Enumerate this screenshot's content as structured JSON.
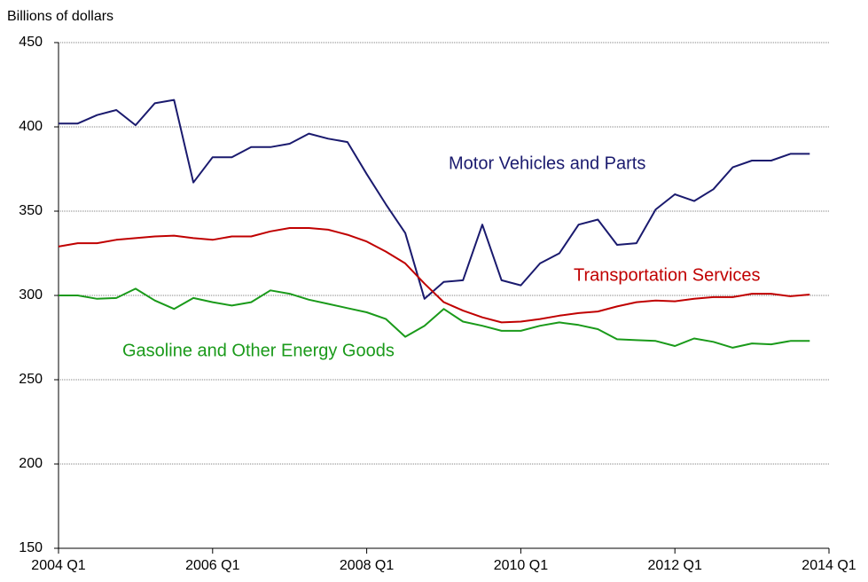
{
  "chart_data": {
    "type": "line",
    "ylabel": "Billions of dollars",
    "categories": [
      "2004 Q1",
      null,
      null,
      null,
      null,
      null,
      null,
      null,
      "2006 Q1",
      null,
      null,
      null,
      null,
      null,
      null,
      null,
      "2008 Q1",
      null,
      null,
      null,
      null,
      null,
      null,
      null,
      "2010 Q1",
      null,
      null,
      null,
      null,
      null,
      null,
      null,
      "2012 Q1",
      null,
      null,
      null,
      null,
      null,
      null,
      null,
      "2014 Q1"
    ],
    "series": [
      {
        "name": "Motor Vehicles and Parts",
        "color": "#1a1a6e",
        "values": [
          402,
          402,
          407,
          410,
          401,
          414,
          416,
          367,
          382,
          382,
          388,
          388,
          390,
          396,
          393,
          391,
          372,
          354,
          337,
          298,
          308,
          309,
          342,
          309,
          306,
          319,
          325,
          342,
          345,
          330,
          331,
          351,
          360,
          356,
          363,
          376,
          380,
          380,
          384,
          384,
          null
        ]
      },
      {
        "name": "Transportation Services",
        "color": "#c00000",
        "values": [
          329,
          331,
          331,
          333,
          334,
          335,
          335.5,
          334,
          333,
          335,
          335,
          338,
          340,
          340,
          339,
          336,
          332,
          326,
          319,
          307,
          296,
          291,
          287,
          284,
          284.5,
          286,
          288,
          289.5,
          290.5,
          293.5,
          296,
          297,
          296.5,
          298,
          299,
          299,
          301,
          301,
          299.5,
          300.5,
          null
        ]
      },
      {
        "name": "Gasoline and Other Energy Goods",
        "color": "#1a9a1a",
        "values": [
          300,
          300,
          298,
          298.5,
          304,
          297,
          292,
          298.5,
          296,
          294,
          296,
          303,
          301,
          297.5,
          295,
          292.5,
          290,
          286,
          275.5,
          282,
          292,
          284.5,
          282,
          279,
          279,
          282,
          284,
          282.5,
          280,
          274,
          273.5,
          273,
          270,
          274.5,
          272.5,
          269,
          271.5,
          271,
          273,
          273,
          null
        ]
      }
    ],
    "ylim": [
      150,
      450
    ],
    "yticks": [
      150,
      200,
      250,
      300,
      350,
      400,
      450
    ],
    "grid": true
  }
}
